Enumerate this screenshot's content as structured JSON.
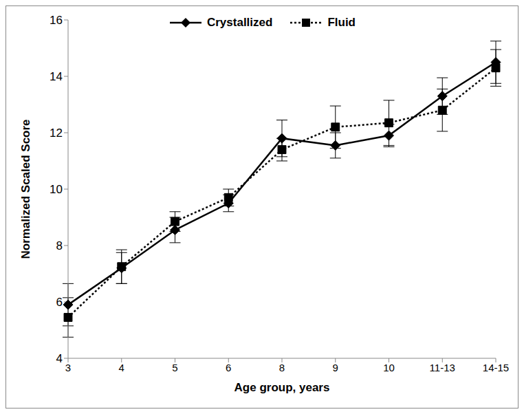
{
  "chart_data": {
    "type": "line",
    "x_label": "Age group, years",
    "y_label": "Normalized Scaled Score",
    "categories": [
      "3",
      "4",
      "5",
      "6",
      "8",
      "9",
      "10",
      "11-13",
      "14-15"
    ],
    "series": [
      {
        "name": "Crystallized",
        "color": "#000000",
        "marker": "diamond",
        "line_style": "solid",
        "values": [
          5.9,
          7.2,
          8.55,
          9.5,
          11.8,
          11.55,
          11.9,
          13.3,
          14.5
        ],
        "errors": [
          0.75,
          0.55,
          0.45,
          0.3,
          0.65,
          0.45,
          0.4,
          0.65,
          0.75
        ]
      },
      {
        "name": "Fluid",
        "color": "#000000",
        "marker": "square",
        "line_style": "dotted",
        "values": [
          5.45,
          7.25,
          8.85,
          9.7,
          11.4,
          12.2,
          12.35,
          12.8,
          14.3
        ],
        "errors": [
          0.7,
          0.6,
          0.35,
          0.3,
          0.4,
          0.75,
          0.8,
          0.75,
          0.65
        ]
      }
    ],
    "ylim": [
      4,
      16
    ],
    "yticks": [
      4,
      6,
      8,
      10,
      12,
      14,
      16
    ],
    "grid": false,
    "legend": "top"
  }
}
